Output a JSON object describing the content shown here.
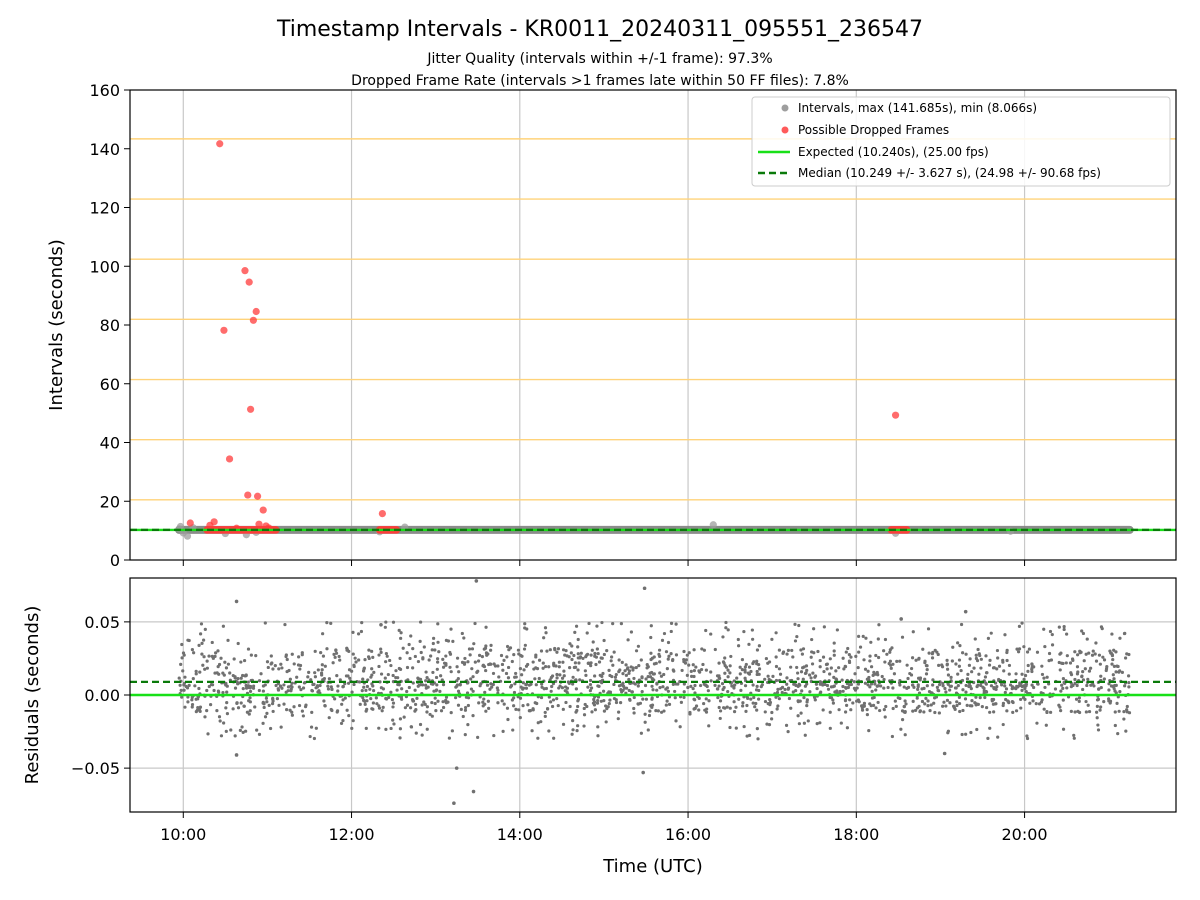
{
  "figure": {
    "title": "Timestamp Intervals - KR0011_20240311_095551_236547",
    "subtitle_1": "Jitter Quality (intervals within +/-1 frame): 97.3%",
    "subtitle_2": "Dropped Frame Rate (intervals >1 frames late within 50 FF files): 7.8%",
    "xlabel": "Time (UTC)"
  },
  "colors": {
    "intervals": "#9e9e9e",
    "intervals_band": "#7f7f7f",
    "dropped": "#ff3b3b",
    "expected": "#18e018",
    "median": "#0a7a0a",
    "frame_lines": "#ffd37a",
    "grid": "#c8c8c8",
    "residuals": "#707070"
  },
  "chart_data": [
    {
      "type": "scatter",
      "panel": "intervals",
      "ylabel": "Intervals (seconds)",
      "xlim": [
        "09:22",
        "21:48"
      ],
      "ylim": [
        0,
        160
      ],
      "x_ticks": [
        "10:00",
        "12:00",
        "14:00",
        "16:00",
        "18:00",
        "20:00"
      ],
      "y_ticks": [
        0,
        20,
        40,
        60,
        80,
        100,
        120,
        140,
        160
      ],
      "grid": "vertical",
      "legend_position": "top-right",
      "legend": {
        "intervals": "Intervals, max (141.685s), min (8.066s)",
        "dropped": "Possible Dropped Frames",
        "expected": "Expected (10.240s), (25.00 fps)",
        "median": "Median (10.249 +/- 3.627 s), (24.98 +/- 90.68 fps)"
      },
      "expected_value": 10.24,
      "median_value": 10.249,
      "frame_multiple_lines": [
        20.48,
        40.96,
        61.44,
        81.92,
        102.4,
        122.88,
        143.36
      ],
      "intervals_range": {
        "start": "09:57",
        "end": "21:15",
        "value": 10.24
      },
      "interval_outliers": [
        {
          "x": "09:57",
          "y": 10.6
        },
        {
          "x": "09:58",
          "y": 11.4
        },
        {
          "x": "10:00",
          "y": 9.2
        },
        {
          "x": "10:03",
          "y": 8.1
        },
        {
          "x": "10:07",
          "y": 11.0
        },
        {
          "x": "10:30",
          "y": 9.0
        },
        {
          "x": "10:45",
          "y": 8.6
        },
        {
          "x": "10:52",
          "y": 9.4
        },
        {
          "x": "12:20",
          "y": 9.6
        },
        {
          "x": "12:38",
          "y": 11.2
        },
        {
          "x": "16:18",
          "y": 12.0
        },
        {
          "x": "18:28",
          "y": 9.1
        },
        {
          "x": "19:50",
          "y": 9.8
        }
      ],
      "dropped_frames": [
        {
          "x": "10:26",
          "y": 141.7
        },
        {
          "x": "10:29",
          "y": 78.2
        },
        {
          "x": "10:33",
          "y": 34.4
        },
        {
          "x": "10:44",
          "y": 98.5
        },
        {
          "x": "10:46",
          "y": 22.1
        },
        {
          "x": "10:47",
          "y": 94.6
        },
        {
          "x": "10:48",
          "y": 51.3
        },
        {
          "x": "10:50",
          "y": 81.6
        },
        {
          "x": "10:52",
          "y": 84.6
        },
        {
          "x": "10:53",
          "y": 21.7
        },
        {
          "x": "10:54",
          "y": 12.2
        },
        {
          "x": "10:57",
          "y": 17.0
        },
        {
          "x": "10:59",
          "y": 11.6
        },
        {
          "x": "10:05",
          "y": 12.6
        },
        {
          "x": "10:19",
          "y": 11.8
        },
        {
          "x": "10:22",
          "y": 13.0
        },
        {
          "x": "10:38",
          "y": 10.8
        },
        {
          "x": "11:01",
          "y": 10.9
        },
        {
          "x": "12:22",
          "y": 15.8
        },
        {
          "x": "18:28",
          "y": 49.3
        }
      ],
      "dropped_clusters": [
        {
          "start": "10:17",
          "end": "11:06",
          "value": 10.24
        },
        {
          "start": "12:20",
          "end": "12:32",
          "value": 10.24
        },
        {
          "start": "18:25",
          "end": "18:36",
          "value": 10.24
        }
      ]
    },
    {
      "type": "scatter",
      "panel": "residuals",
      "ylabel": "Residuals (seconds)",
      "xlim": [
        "09:22",
        "21:48"
      ],
      "ylim": [
        -0.08,
        0.08
      ],
      "x_ticks": [
        "10:00",
        "12:00",
        "14:00",
        "16:00",
        "18:00",
        "20:00"
      ],
      "y_ticks": [
        "0.05",
        "0.00",
        "−0.05"
      ],
      "y_tick_values": [
        0.05,
        0,
        -0.05
      ],
      "grid": "both",
      "expected_residual": 0.0,
      "median_residual": 0.009,
      "residual_range": {
        "start": "09:57",
        "end": "21:15",
        "min": -0.03,
        "max": 0.05,
        "count": 2200
      },
      "residual_outliers": [
        {
          "x": "13:29",
          "y": 0.078
        },
        {
          "x": "15:29",
          "y": 0.073
        },
        {
          "x": "10:38",
          "y": 0.064
        },
        {
          "x": "18:32",
          "y": 0.052
        },
        {
          "x": "19:18",
          "y": 0.057
        },
        {
          "x": "12:21",
          "y": 0.048
        },
        {
          "x": "13:13",
          "y": -0.074
        },
        {
          "x": "13:15",
          "y": -0.05
        },
        {
          "x": "13:27",
          "y": -0.066
        },
        {
          "x": "15:28",
          "y": -0.053
        },
        {
          "x": "10:38",
          "y": -0.041
        },
        {
          "x": "19:03",
          "y": -0.04
        }
      ]
    }
  ]
}
